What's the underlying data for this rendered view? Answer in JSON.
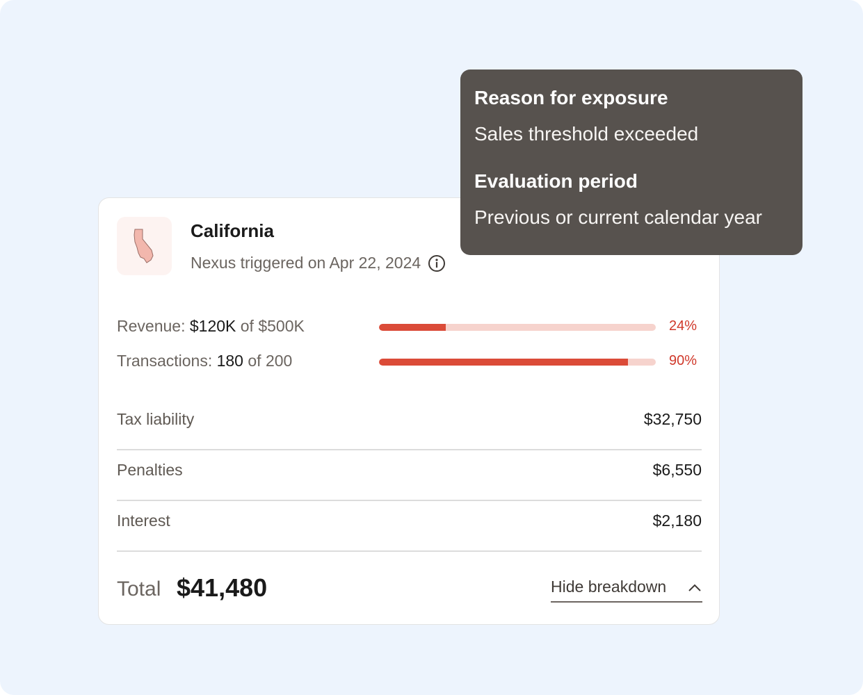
{
  "card": {
    "state_name": "California",
    "nexus_text": "Nexus triggered on Apr 22, 2024",
    "metrics": [
      {
        "label": "Revenue:",
        "value": "$120K",
        "of": "of",
        "limit": "$500K",
        "percent_text": "24%",
        "percent": 24
      },
      {
        "label": "Transactions:",
        "value": "180",
        "of": "of",
        "limit": "200",
        "percent_text": "90%",
        "percent": 90
      }
    ],
    "rows": [
      {
        "label": "Tax liability",
        "value": "$32,750"
      },
      {
        "label": "Penalties",
        "value": "$6,550"
      },
      {
        "label": "Interest",
        "value": "$2,180"
      }
    ],
    "total_label": "Total",
    "total_value": "$41,480",
    "hide_button_label": "Hide breakdown"
  },
  "tooltip": {
    "reason_heading": "Reason for exposure",
    "reason_text": "Sales threshold exceeded",
    "period_heading": "Evaluation period",
    "period_text": "Previous or current calendar year"
  },
  "icons": {
    "state": "california-map-icon",
    "info": "info-icon",
    "chevron": "chevron-up-icon"
  },
  "colors": {
    "accent": "#db4b38",
    "track": "#f6d3cd",
    "percent_text": "#d0392b",
    "tooltip_bg": "#57524e",
    "background": "#edf4fd"
  }
}
